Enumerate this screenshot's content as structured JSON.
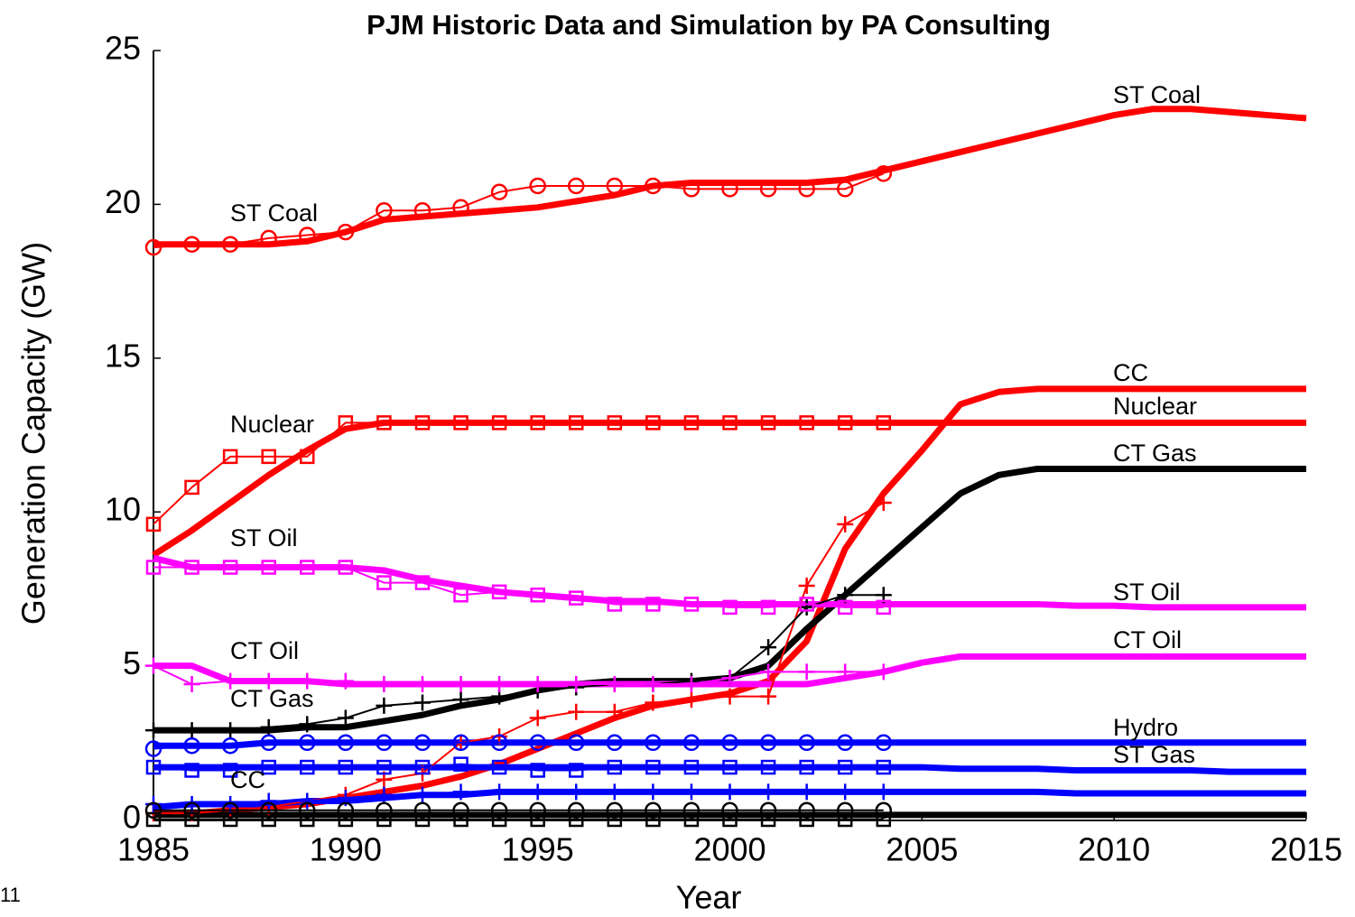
{
  "chart_data": {
    "type": "line",
    "title": "PJM Historic Data and Simulation by PA Consulting",
    "xlabel": "Year",
    "ylabel": "Generation Capacity (GW)",
    "slide_number": "11",
    "x": [
      1985,
      1986,
      1987,
      1988,
      1989,
      1990,
      1991,
      1992,
      1993,
      1994,
      1995,
      1996,
      1997,
      1998,
      1999,
      2000,
      2001,
      2002,
      2003,
      2004,
      2005,
      2006,
      2007,
      2008,
      2009,
      2010,
      2011,
      2012,
      2013,
      2014,
      2015
    ],
    "xlim": [
      1985,
      2015
    ],
    "xticks": [
      1985,
      1990,
      1995,
      2000,
      2005,
      2010,
      2015
    ],
    "ylim": [
      0,
      25
    ],
    "yticks": [
      0,
      5,
      10,
      15,
      20,
      25
    ],
    "grid": false,
    "series": [
      {
        "name": "ST Coal",
        "color": "#ff0000",
        "marker": "none",
        "linewidth": 7,
        "values": [
          18.7,
          18.7,
          18.7,
          18.7,
          18.8,
          19.1,
          19.5,
          19.6,
          19.7,
          19.8,
          19.9,
          20.1,
          20.3,
          20.6,
          20.7,
          20.7,
          20.7,
          20.7,
          20.8,
          21.1,
          21.4,
          21.7,
          22.0,
          22.3,
          22.6,
          22.9,
          23.1,
          23.1,
          23.0,
          22.9,
          22.8
        ]
      },
      {
        "name": "ST Coal",
        "color": "#ff0000",
        "marker": "o",
        "linewidth": 2,
        "values": [
          18.6,
          18.7,
          18.7,
          18.9,
          19.0,
          19.1,
          19.8,
          19.8,
          19.9,
          20.4,
          20.6,
          20.6,
          20.6,
          20.6,
          20.5,
          20.5,
          20.5,
          20.5,
          20.5,
          21.0,
          null,
          null,
          null,
          null,
          null,
          null,
          null,
          null,
          null,
          null,
          null
        ]
      },
      {
        "name": "Nuclear",
        "color": "#ff0000",
        "marker": "none",
        "linewidth": 7,
        "values": [
          8.6,
          9.4,
          10.3,
          11.2,
          12.0,
          12.7,
          12.9,
          12.9,
          12.9,
          12.9,
          12.9,
          12.9,
          12.9,
          12.9,
          12.9,
          12.9,
          12.9,
          12.9,
          12.9,
          12.9,
          12.9,
          12.9,
          12.9,
          12.9,
          12.9,
          12.9,
          12.9,
          12.9,
          12.9,
          12.9,
          12.9
        ]
      },
      {
        "name": "Nuclear",
        "color": "#ff0000",
        "marker": "s",
        "linewidth": 2,
        "values": [
          9.6,
          10.8,
          11.8,
          11.8,
          11.8,
          12.9,
          12.9,
          12.9,
          12.9,
          12.9,
          12.9,
          12.9,
          12.9,
          12.9,
          12.9,
          12.9,
          12.9,
          12.9,
          12.9,
          12.9,
          null,
          null,
          null,
          null,
          null,
          null,
          null,
          null,
          null,
          null,
          null
        ]
      },
      {
        "name": "CC",
        "color": "#ff0000",
        "marker": "none",
        "linewidth": 7,
        "values": [
          0.2,
          0.2,
          0.3,
          0.4,
          0.5,
          0.7,
          0.9,
          1.1,
          1.4,
          1.8,
          2.3,
          2.8,
          3.3,
          3.7,
          3.9,
          4.1,
          4.5,
          5.8,
          8.8,
          10.6,
          12.0,
          13.5,
          13.9,
          14.0,
          14.0,
          14.0,
          14.0,
          14.0,
          14.0,
          14.0,
          14.0
        ]
      },
      {
        "name": "CC",
        "color": "#ff0000",
        "marker": "+",
        "linewidth": 2,
        "values": [
          0.2,
          0.2,
          0.3,
          0.4,
          0.6,
          0.8,
          1.3,
          1.5,
          2.5,
          2.7,
          3.3,
          3.5,
          3.5,
          3.8,
          3.9,
          4.0,
          4.0,
          7.6,
          9.6,
          10.3,
          null,
          null,
          null,
          null,
          null,
          null,
          null,
          null,
          null,
          null,
          null
        ]
      },
      {
        "name": "CT Gas",
        "color": "#000000",
        "marker": "none",
        "linewidth": 7,
        "values": [
          2.9,
          2.9,
          2.9,
          2.9,
          3.0,
          3.0,
          3.2,
          3.4,
          3.7,
          3.9,
          4.2,
          4.4,
          4.5,
          4.5,
          4.5,
          4.6,
          5.0,
          6.2,
          7.3,
          8.4,
          9.5,
          10.6,
          11.2,
          11.4,
          11.4,
          11.4,
          11.4,
          11.4,
          11.4,
          11.4,
          11.4
        ]
      },
      {
        "name": "CT Gas",
        "color": "#000000",
        "marker": "+",
        "linewidth": 2,
        "values": [
          2.9,
          2.9,
          2.9,
          3.0,
          3.1,
          3.3,
          3.7,
          3.8,
          3.9,
          4.0,
          4.2,
          4.3,
          4.4,
          4.4,
          4.5,
          4.6,
          5.6,
          6.9,
          7.3,
          7.3,
          null,
          null,
          null,
          null,
          null,
          null,
          null,
          null,
          null,
          null,
          null
        ]
      },
      {
        "name": "ST Oil",
        "color": "#ff00ff",
        "marker": "none",
        "linewidth": 7,
        "values": [
          8.5,
          8.2,
          8.2,
          8.2,
          8.2,
          8.2,
          8.1,
          7.8,
          7.6,
          7.4,
          7.3,
          7.2,
          7.1,
          7.1,
          7.0,
          7.0,
          7.0,
          7.0,
          7.0,
          7.0,
          7.0,
          7.0,
          7.0,
          7.0,
          6.95,
          6.95,
          6.9,
          6.9,
          6.9,
          6.9,
          6.9
        ]
      },
      {
        "name": "ST Oil",
        "color": "#ff00ff",
        "marker": "s",
        "linewidth": 2,
        "values": [
          8.2,
          8.2,
          8.2,
          8.2,
          8.2,
          8.2,
          7.7,
          7.7,
          7.3,
          7.4,
          7.3,
          7.2,
          7.0,
          7.0,
          7.0,
          6.9,
          6.9,
          7.0,
          6.9,
          6.9,
          null,
          null,
          null,
          null,
          null,
          null,
          null,
          null,
          null,
          null,
          null
        ]
      },
      {
        "name": "CT Oil",
        "color": "#ff00ff",
        "marker": "none",
        "linewidth": 7,
        "values": [
          5.0,
          5.0,
          4.5,
          4.5,
          4.5,
          4.4,
          4.4,
          4.4,
          4.4,
          4.4,
          4.4,
          4.4,
          4.4,
          4.4,
          4.4,
          4.4,
          4.4,
          4.4,
          4.6,
          4.8,
          5.1,
          5.3,
          5.3,
          5.3,
          5.3,
          5.3,
          5.3,
          5.3,
          5.3,
          5.3,
          5.3
        ]
      },
      {
        "name": "CT Oil",
        "color": "#ff00ff",
        "marker": "+",
        "linewidth": 2,
        "values": [
          5.0,
          4.4,
          4.5,
          4.5,
          4.5,
          4.5,
          4.4,
          4.4,
          4.4,
          4.4,
          4.4,
          4.4,
          4.4,
          4.4,
          4.4,
          4.6,
          4.8,
          4.8,
          4.8,
          4.8,
          null,
          null,
          null,
          null,
          null,
          null,
          null,
          null,
          null,
          null,
          null
        ]
      },
      {
        "name": "Hydro",
        "color": "#0000ff",
        "marker": "none",
        "linewidth": 7,
        "values": [
          2.4,
          2.4,
          2.4,
          2.5,
          2.5,
          2.5,
          2.5,
          2.5,
          2.5,
          2.5,
          2.5,
          2.5,
          2.5,
          2.5,
          2.5,
          2.5,
          2.5,
          2.5,
          2.5,
          2.5,
          2.5,
          2.5,
          2.5,
          2.5,
          2.5,
          2.5,
          2.5,
          2.5,
          2.5,
          2.5,
          2.5
        ]
      },
      {
        "color": "#0000ff",
        "marker": "o",
        "linewidth": 2,
        "values": [
          2.3,
          2.4,
          2.4,
          2.5,
          2.5,
          2.5,
          2.5,
          2.5,
          2.5,
          2.5,
          2.5,
          2.5,
          2.5,
          2.5,
          2.5,
          2.5,
          2.5,
          2.5,
          2.5,
          2.5,
          null,
          null,
          null,
          null,
          null,
          null,
          null,
          null,
          null,
          null,
          null
        ]
      },
      {
        "name": "ST Gas",
        "color": "#0000ff",
        "marker": "none",
        "linewidth": 7,
        "values": [
          1.7,
          1.7,
          1.7,
          1.7,
          1.7,
          1.7,
          1.7,
          1.7,
          1.7,
          1.7,
          1.7,
          1.7,
          1.7,
          1.7,
          1.7,
          1.7,
          1.7,
          1.7,
          1.7,
          1.7,
          1.7,
          1.65,
          1.65,
          1.65,
          1.6,
          1.6,
          1.6,
          1.6,
          1.55,
          1.55,
          1.55
        ]
      },
      {
        "color": "#0000ff",
        "marker": "s",
        "linewidth": 2,
        "values": [
          1.7,
          1.6,
          1.6,
          1.7,
          1.7,
          1.7,
          1.7,
          1.7,
          1.8,
          1.7,
          1.6,
          1.6,
          1.7,
          1.7,
          1.7,
          1.7,
          1.7,
          1.7,
          1.7,
          1.7,
          null,
          null,
          null,
          null,
          null,
          null,
          null,
          null,
          null,
          null,
          null
        ]
      },
      {
        "color": "#0000ff",
        "marker": "none",
        "linewidth": 7,
        "values": [
          0.4,
          0.5,
          0.5,
          0.5,
          0.6,
          0.6,
          0.7,
          0.8,
          0.8,
          0.9,
          0.9,
          0.9,
          0.9,
          0.9,
          0.9,
          0.9,
          0.9,
          0.9,
          0.9,
          0.9,
          0.9,
          0.9,
          0.9,
          0.9,
          0.85,
          0.85,
          0.85,
          0.85,
          0.85,
          0.85,
          0.85
        ]
      },
      {
        "color": "#0000ff",
        "marker": "+",
        "linewidth": 2,
        "values": [
          0.5,
          0.5,
          0.5,
          0.6,
          0.6,
          0.7,
          0.8,
          0.8,
          0.9,
          0.9,
          0.9,
          0.9,
          0.9,
          0.9,
          0.9,
          0.9,
          0.9,
          0.9,
          0.9,
          0.9,
          null,
          null,
          null,
          null,
          null,
          null,
          null,
          null,
          null,
          null,
          null
        ]
      },
      {
        "color": "#000000",
        "marker": "none",
        "linewidth": 7,
        "values": [
          0.15,
          0.15,
          0.15,
          0.15,
          0.15,
          0.15,
          0.15,
          0.15,
          0.15,
          0.15,
          0.15,
          0.15,
          0.15,
          0.15,
          0.15,
          0.15,
          0.15,
          0.15,
          0.15,
          0.15,
          0.15,
          0.15,
          0.15,
          0.15,
          0.15,
          0.15,
          0.15,
          0.15,
          0.15,
          0.15,
          0.15
        ]
      },
      {
        "color": "#000000",
        "marker": "o",
        "linewidth": 2,
        "values": [
          0.3,
          0.3,
          0.3,
          0.3,
          0.3,
          0.3,
          0.3,
          0.3,
          0.3,
          0.3,
          0.3,
          0.3,
          0.3,
          0.3,
          0.3,
          0.3,
          0.3,
          0.3,
          0.3,
          0.3,
          null,
          null,
          null,
          null,
          null,
          null,
          null,
          null,
          null,
          null,
          null
        ]
      },
      {
        "color": "#000000",
        "marker": "s",
        "linewidth": 2,
        "values": [
          0,
          0,
          0,
          0,
          0,
          0,
          0,
          0,
          0,
          0,
          0,
          0,
          0,
          0,
          0,
          0,
          0,
          0,
          0,
          0,
          null,
          null,
          null,
          null,
          null,
          null,
          null,
          null,
          null,
          null,
          null
        ]
      }
    ]
  }
}
